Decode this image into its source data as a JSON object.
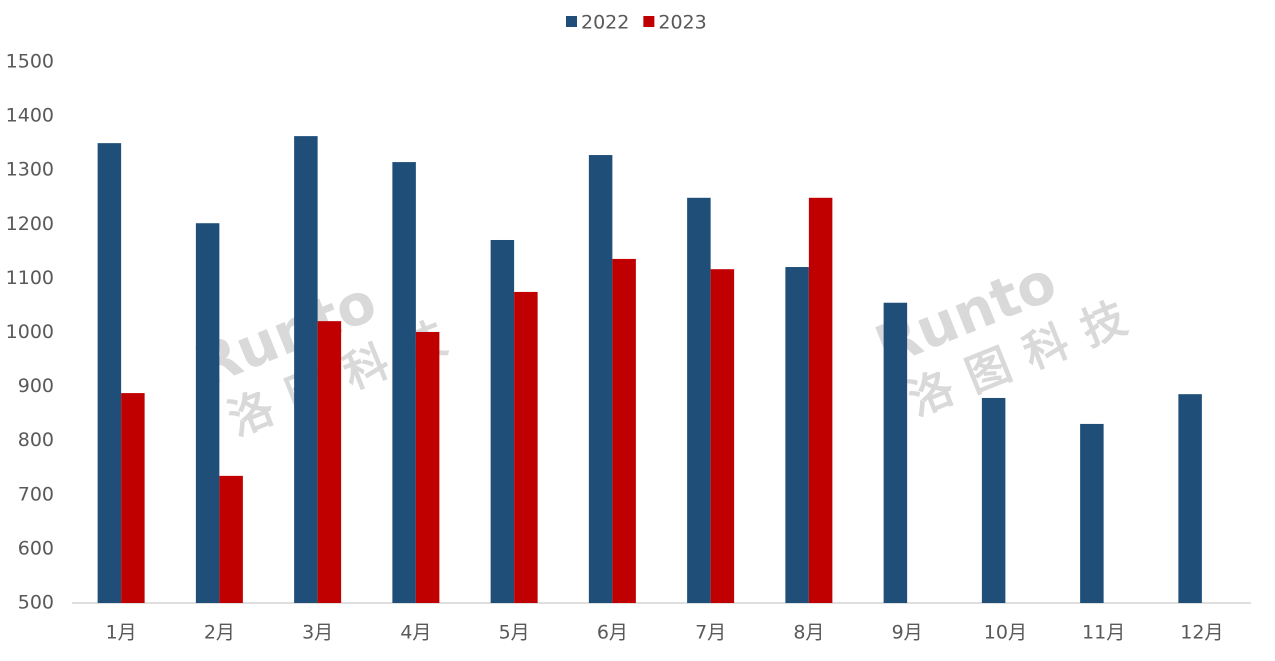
{
  "chart_data": {
    "type": "bar",
    "categories": [
      "1月",
      "2月",
      "3月",
      "4月",
      "5月",
      "6月",
      "7月",
      "8月",
      "9月",
      "10月",
      "11月",
      "12月"
    ],
    "series": [
      {
        "name": "2022",
        "color": "#1f4e79",
        "values": [
          1350,
          1202,
          1363,
          1315,
          1171,
          1328,
          1249,
          1121,
          1055,
          879,
          831,
          886
        ]
      },
      {
        "name": "2023",
        "color": "#c00000",
        "values": [
          888,
          735,
          1021,
          1001,
          1075,
          1136,
          1117,
          1249,
          null,
          null,
          null,
          null
        ]
      }
    ],
    "ylim": [
      500,
      1500
    ],
    "yticks": [
      500,
      600,
      700,
      800,
      900,
      1000,
      1100,
      1200,
      1300,
      1400,
      1500
    ],
    "grid": false,
    "legend": "top",
    "watermark": {
      "brand": "Runto",
      "name": "洛图科技"
    }
  }
}
